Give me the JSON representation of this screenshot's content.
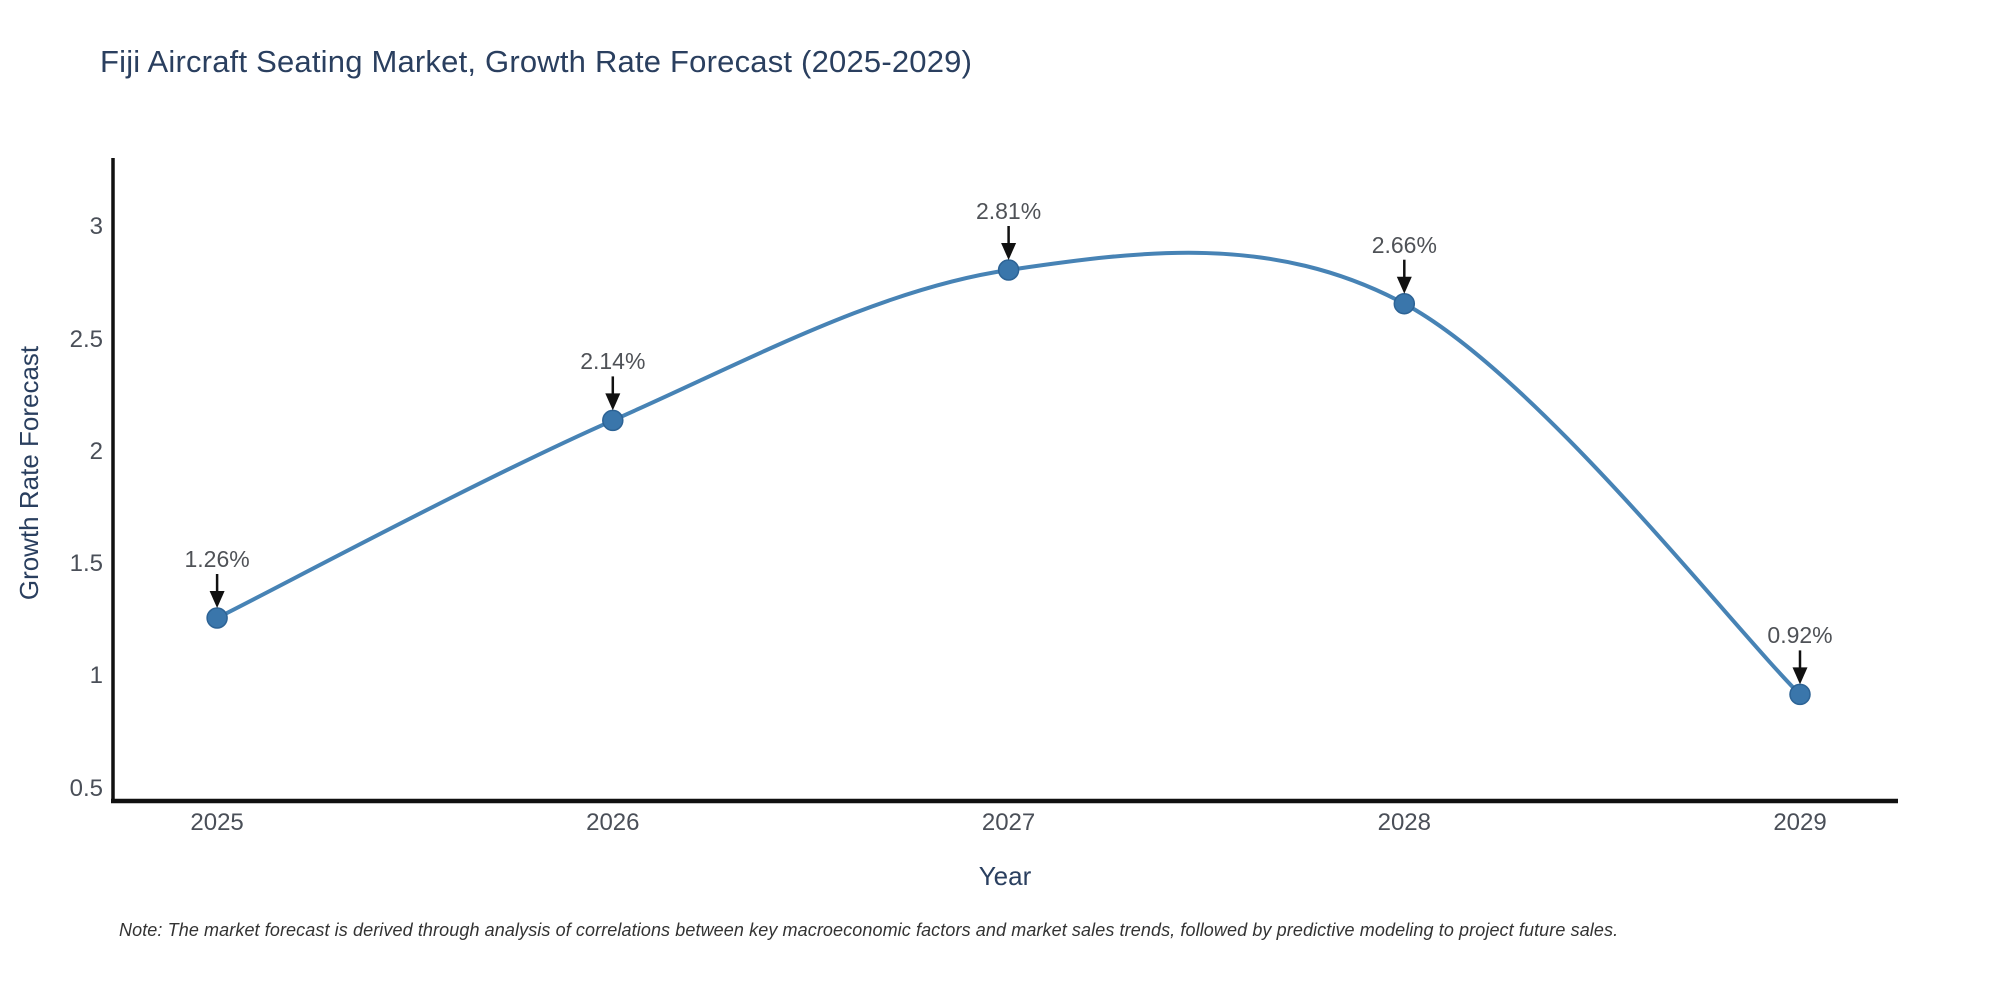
{
  "chart_data": {
    "type": "line",
    "line_shape": "spline",
    "title": "Fiji Aircraft Seating Market, Growth Rate Forecast (2025-2029)",
    "xlabel": "Year",
    "ylabel": "Growth Rate Forecast",
    "x": [
      2025,
      2026,
      2027,
      2028,
      2029
    ],
    "y": [
      1.26,
      2.14,
      2.81,
      2.66,
      0.92
    ],
    "point_labels": [
      "1.26%",
      "2.14%",
      "2.81%",
      "2.66%",
      "0.92%"
    ],
    "xticks": [
      2025,
      2026,
      2027,
      2028,
      2029
    ],
    "yticks": [
      0.5,
      1,
      1.5,
      2,
      2.5,
      3
    ],
    "xlim": [
      2024.737,
      2029.245
    ],
    "ylim": [
      0.454,
      3.3
    ],
    "grid": false,
    "legend": "none",
    "annotation_style": "value label with down arrow to each point",
    "colors": {
      "line": "#4783b5",
      "marker_fill": "#3a76ab",
      "marker_edge": "#2d6395",
      "axis_line": "#111111",
      "arrow": "#111111",
      "title_text": "#2a3f5f",
      "axis_title_text": "#2a3f5f",
      "tick_text": "#4a4f58",
      "annotation_text": "#4f5257",
      "note_text": "#333333",
      "background": "#ffffff"
    }
  },
  "note": "Note: The market forecast is derived through analysis of correlations between key macroeconomic factors and market sales trends, followed by predictive modeling to project future sales."
}
